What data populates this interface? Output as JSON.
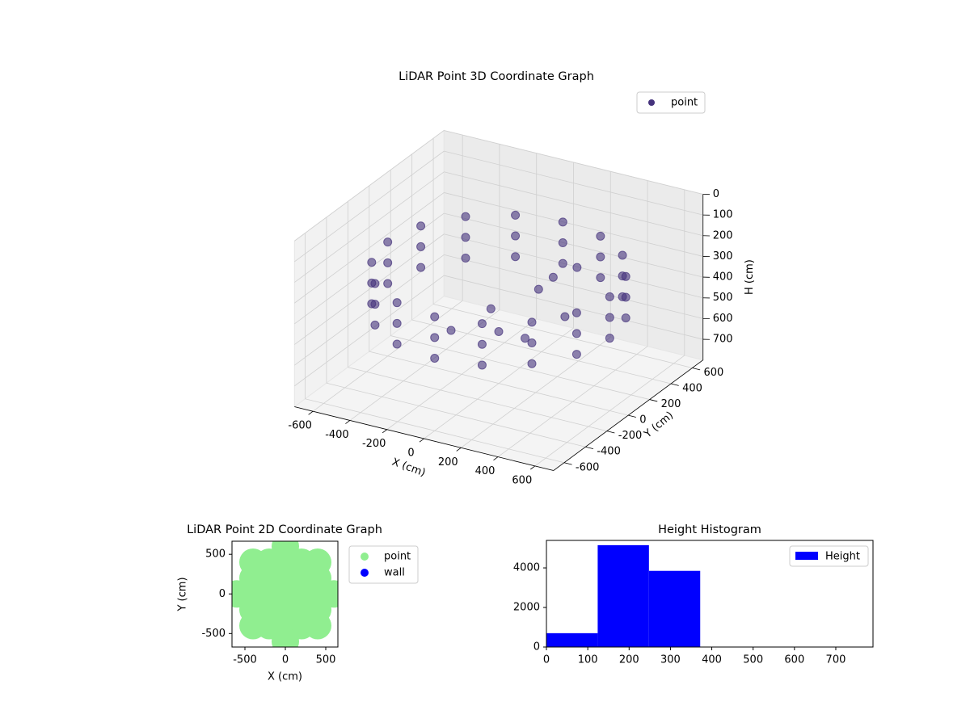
{
  "chart_data": [
    {
      "type": "scatter3d",
      "title": "LiDAR Point 3D Coordinate Graph",
      "xlabel": "X (cm)",
      "ylabel": "Y (cm)",
      "zlabel": "H (cm)",
      "xlim": [
        -700,
        700
      ],
      "ylim": [
        -700,
        700
      ],
      "zlim": [
        800,
        0
      ],
      "xticks": [
        -600,
        -400,
        -200,
        0,
        200,
        400,
        600
      ],
      "yticks": [
        -600,
        -400,
        -200,
        0,
        200,
        400,
        600
      ],
      "zticks": [
        0,
        100,
        200,
        300,
        400,
        500,
        600,
        700
      ],
      "grid": true,
      "legend": "upper right",
      "series": [
        {
          "name": "point",
          "color": "#45327c",
          "x": [
            600,
            554,
            424,
            230,
            0,
            -230,
            -424,
            -554,
            -600,
            -554,
            -424,
            -230,
            0,
            230,
            424,
            554,
            600,
            554,
            424,
            230,
            0,
            -230,
            -424,
            -554,
            -600,
            -554,
            -424,
            -230,
            0,
            230,
            424,
            554,
            600,
            554,
            424,
            230,
            0,
            -230,
            -424,
            -554,
            -600,
            -554,
            -424,
            -230,
            0,
            230,
            424,
            554,
            100,
            150,
            -100,
            200,
            300,
            0,
            -200,
            250
          ],
          "y": [
            0,
            230,
            424,
            554,
            600,
            554,
            424,
            230,
            0,
            -230,
            -424,
            -554,
            -600,
            -554,
            -424,
            -230,
            0,
            230,
            424,
            554,
            600,
            554,
            424,
            230,
            0,
            -230,
            -424,
            -554,
            -600,
            -554,
            -424,
            -230,
            0,
            230,
            424,
            554,
            600,
            554,
            424,
            230,
            0,
            -230,
            -424,
            -554,
            -600,
            -554,
            -424,
            -230,
            200,
            250,
            100,
            -100,
            100,
            0,
            -100,
            300
          ],
          "z": [
            250,
            250,
            250,
            250,
            250,
            250,
            250,
            250,
            250,
            250,
            250,
            250,
            250,
            250,
            250,
            250,
            350,
            350,
            350,
            350,
            350,
            350,
            350,
            350,
            350,
            350,
            350,
            350,
            350,
            350,
            350,
            350,
            450,
            450,
            450,
            450,
            450,
            450,
            450,
            450,
            450,
            450,
            450,
            450,
            450,
            450,
            450,
            450,
            400,
            350,
            500,
            500,
            450,
            550,
            550,
            300
          ]
        }
      ]
    },
    {
      "type": "scatter",
      "title": "LiDAR Point 2D Coordinate Graph",
      "xlabel": "X (cm)",
      "ylabel": "Y (cm)",
      "xlim": [
        -660,
        650
      ],
      "ylim": [
        -670,
        665
      ],
      "xticks": [
        -500,
        0,
        500
      ],
      "yticks": [
        -500,
        0,
        500
      ],
      "legend": "outside right",
      "series": [
        {
          "name": "point",
          "color": "#90ee90",
          "x": [
            -400,
            -400,
            -400,
            -400,
            -400,
            -200,
            -200,
            -200,
            -200,
            -200,
            0,
            0,
            0,
            0,
            0,
            200,
            200,
            200,
            200,
            200,
            400,
            400,
            400,
            400,
            400,
            -600,
            600,
            0,
            0
          ],
          "y": [
            -400,
            -200,
            0,
            200,
            400,
            -400,
            -200,
            0,
            200,
            400,
            -400,
            -200,
            0,
            200,
            400,
            -400,
            -200,
            0,
            200,
            400,
            -400,
            -200,
            0,
            200,
            400,
            0,
            0,
            -600,
            600
          ]
        },
        {
          "name": "wall",
          "color": "#0000ff",
          "x": [],
          "y": []
        }
      ]
    },
    {
      "type": "histogram",
      "title": "Height Histogram",
      "xlim": [
        0,
        790
      ],
      "ylim": [
        0,
        5390
      ],
      "xticks": [
        0,
        100,
        200,
        300,
        400,
        500,
        600,
        700
      ],
      "yticks": [
        0,
        2000,
        4000
      ],
      "legend": "upper right",
      "bins": [
        0,
        124,
        248,
        372,
        496,
        620,
        744
      ],
      "series": [
        {
          "name": "Height",
          "color": "#0000ff",
          "values": [
            700,
            5150,
            3850,
            0,
            0,
            0,
            0
          ]
        }
      ]
    }
  ]
}
